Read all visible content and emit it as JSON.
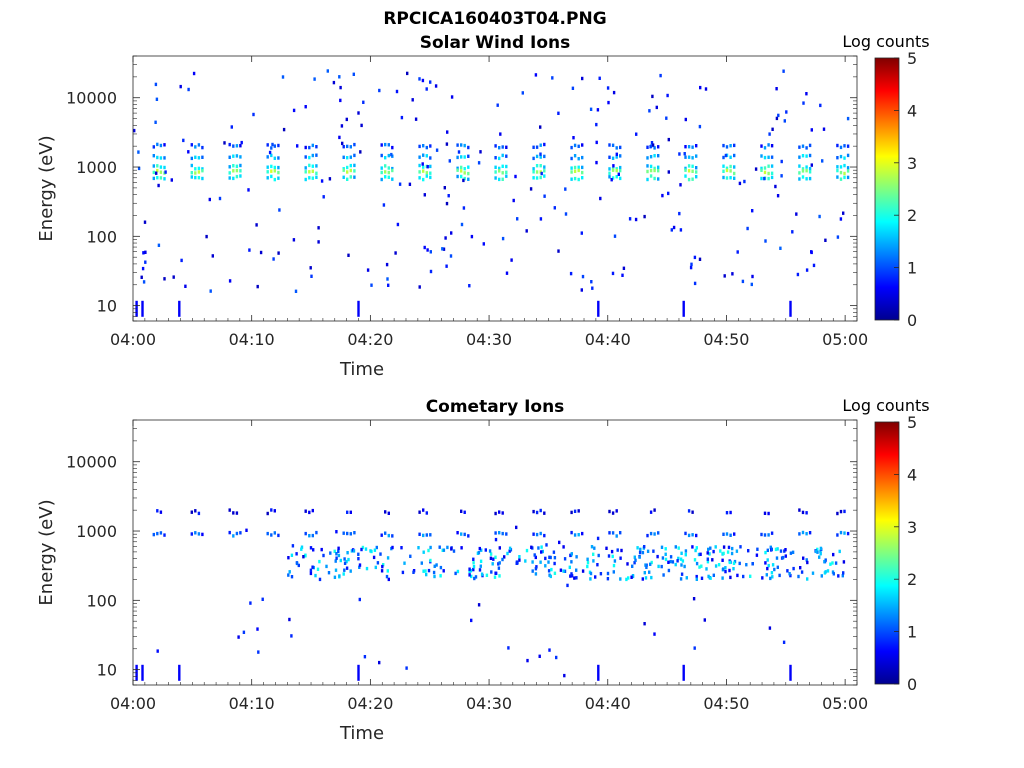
{
  "figure_title": "RPCICA160403T04.PNG",
  "chart_data": [
    {
      "type": "heatmap",
      "title": "Solar Wind Ions",
      "xlabel": "Time",
      "ylabel": "Energy (eV)",
      "x_scale": "time",
      "xlim": [
        "04:00",
        "05:01"
      ],
      "y_scale": "log",
      "ylim": [
        6,
        40000
      ],
      "x_ticks": [
        "04:00",
        "04:10",
        "04:20",
        "04:30",
        "04:40",
        "04:50",
        "05:00"
      ],
      "y_ticks": [
        "10",
        "100",
        "1000",
        "10000"
      ],
      "colorbar": {
        "label": "Log counts",
        "range": [
          0,
          5
        ],
        "ticks": [
          "0",
          "1",
          "2",
          "3",
          "4",
          "5"
        ],
        "colormap": "jet"
      },
      "legend": "none",
      "grid": false,
      "pulse_times": [
        "04:02:12",
        "04:05:24",
        "04:08:36",
        "04:11:48",
        "04:15:00",
        "04:18:12",
        "04:21:24",
        "04:24:36",
        "04:27:48",
        "04:31:00",
        "04:34:12",
        "04:37:24",
        "04:40:36",
        "04:43:48",
        "04:47:00",
        "04:50:12",
        "04:53:24",
        "04:56:36",
        "04:59:48"
      ],
      "pulse_bands": [
        {
          "energy_eV": 2000,
          "log_counts": 1.4
        },
        {
          "energy_eV": 1400,
          "log_counts": 1.8
        },
        {
          "energy_eV": 1000,
          "log_counts": 2.2
        },
        {
          "energy_eV": 850,
          "log_counts": 2.9
        },
        {
          "energy_eV": 700,
          "log_counts": 2.2
        }
      ]
    },
    {
      "type": "heatmap",
      "title": "Cometary Ions",
      "xlabel": "Time",
      "ylabel": "Energy (eV)",
      "x_scale": "time",
      "xlim": [
        "04:00",
        "05:01"
      ],
      "y_scale": "log",
      "ylim": [
        6,
        40000
      ],
      "x_ticks": [
        "04:00",
        "04:10",
        "04:20",
        "04:30",
        "04:40",
        "04:50",
        "05:00"
      ],
      "y_ticks": [
        "10",
        "100",
        "1000",
        "10000"
      ],
      "colorbar": {
        "label": "Log counts",
        "range": [
          0,
          5
        ],
        "ticks": [
          "0",
          "1",
          "2",
          "3",
          "4",
          "5"
        ],
        "colormap": "jet"
      },
      "legend": "none",
      "grid": false,
      "pulse_times": [
        "04:02:12",
        "04:05:24",
        "04:08:36",
        "04:11:48",
        "04:15:00",
        "04:18:12",
        "04:21:24",
        "04:24:36",
        "04:27:48",
        "04:31:00",
        "04:34:12",
        "04:37:24",
        "04:40:36",
        "04:43:48",
        "04:47:00",
        "04:50:12",
        "04:53:24",
        "04:56:36",
        "04:59:48"
      ],
      "pulse_bands": [
        {
          "energy_eV": 1900,
          "log_counts": 0.8
        },
        {
          "energy_eV": 900,
          "log_counts": 1.5
        }
      ],
      "cometary_band": {
        "energy_range_eV": [
          200,
          600
        ],
        "log_counts_range": [
          0.5,
          2.0
        ],
        "from": "04:13",
        "to": "05:00"
      }
    }
  ]
}
